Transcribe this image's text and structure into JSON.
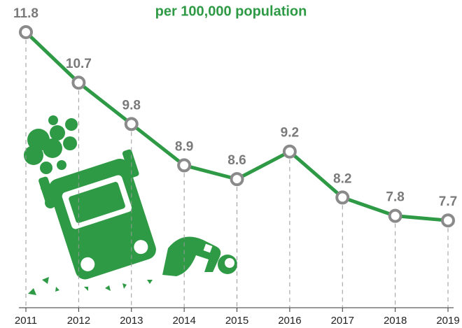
{
  "chart_data": {
    "type": "line",
    "title": "per 100,000 population",
    "categories": [
      "2011",
      "2012",
      "2013",
      "2014",
      "2015",
      "2016",
      "2017",
      "2018",
      "2019"
    ],
    "values": [
      11.8,
      10.7,
      9.8,
      8.9,
      8.6,
      9.2,
      8.2,
      7.8,
      7.7
    ],
    "color": "#2f9a45",
    "marker_color": "#8a8a8a",
    "label_color": "#7a7a7a",
    "ylim": [
      5.8,
      12.5
    ]
  }
}
